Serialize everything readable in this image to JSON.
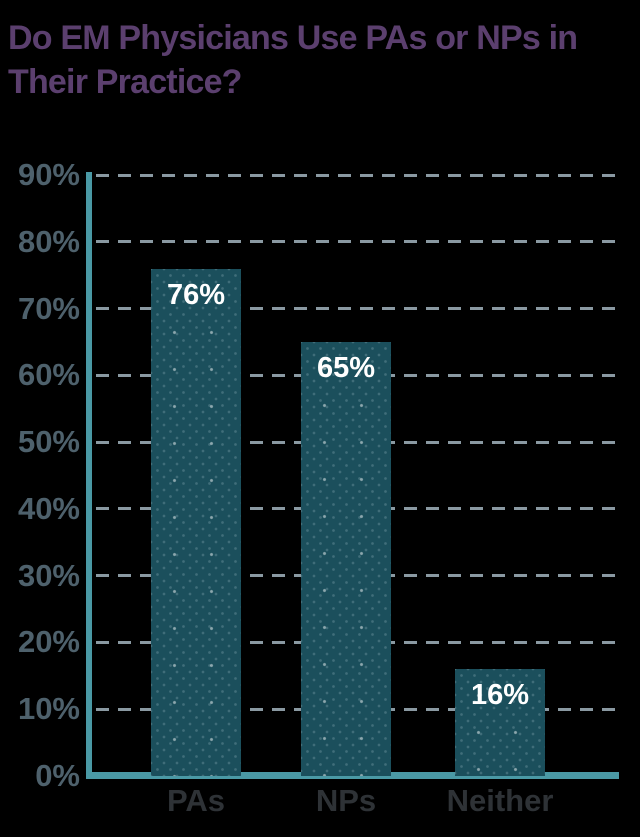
{
  "header": {
    "title_line1": "Do EM Physicians Use PAs or NPs in",
    "title_line2": "Their Practice?"
  },
  "colors": {
    "background": "#000000",
    "title_text": "#5b3f6e",
    "axis_teal": "#4a99a5",
    "bar_fill": "#1b4f5c",
    "gridline": "#8a99a2",
    "y_tick_text": "#4e616c",
    "x_label_text": "#2e3236",
    "value_label_text": "#ffffff"
  },
  "chart_data": {
    "type": "bar",
    "title": "Do EM Physicians Use PAs or NPs in Their Practice?",
    "categories": [
      "PAs",
      "NPs",
      "Neither"
    ],
    "values": [
      76,
      65,
      16
    ],
    "value_labels": [
      "76%",
      "65%",
      "16%"
    ],
    "y_ticks": [
      0,
      10,
      20,
      30,
      40,
      50,
      60,
      70,
      80,
      90
    ],
    "y_tick_labels": [
      "0%",
      "10%",
      "20%",
      "30%",
      "40%",
      "50%",
      "60%",
      "70%",
      "80%",
      "90%"
    ],
    "xlabel": "",
    "ylabel": "",
    "ylim": [
      0,
      90
    ],
    "grid": "dashed-horizontal",
    "legend": "none",
    "bar_texture": "diagonal-dotted"
  }
}
